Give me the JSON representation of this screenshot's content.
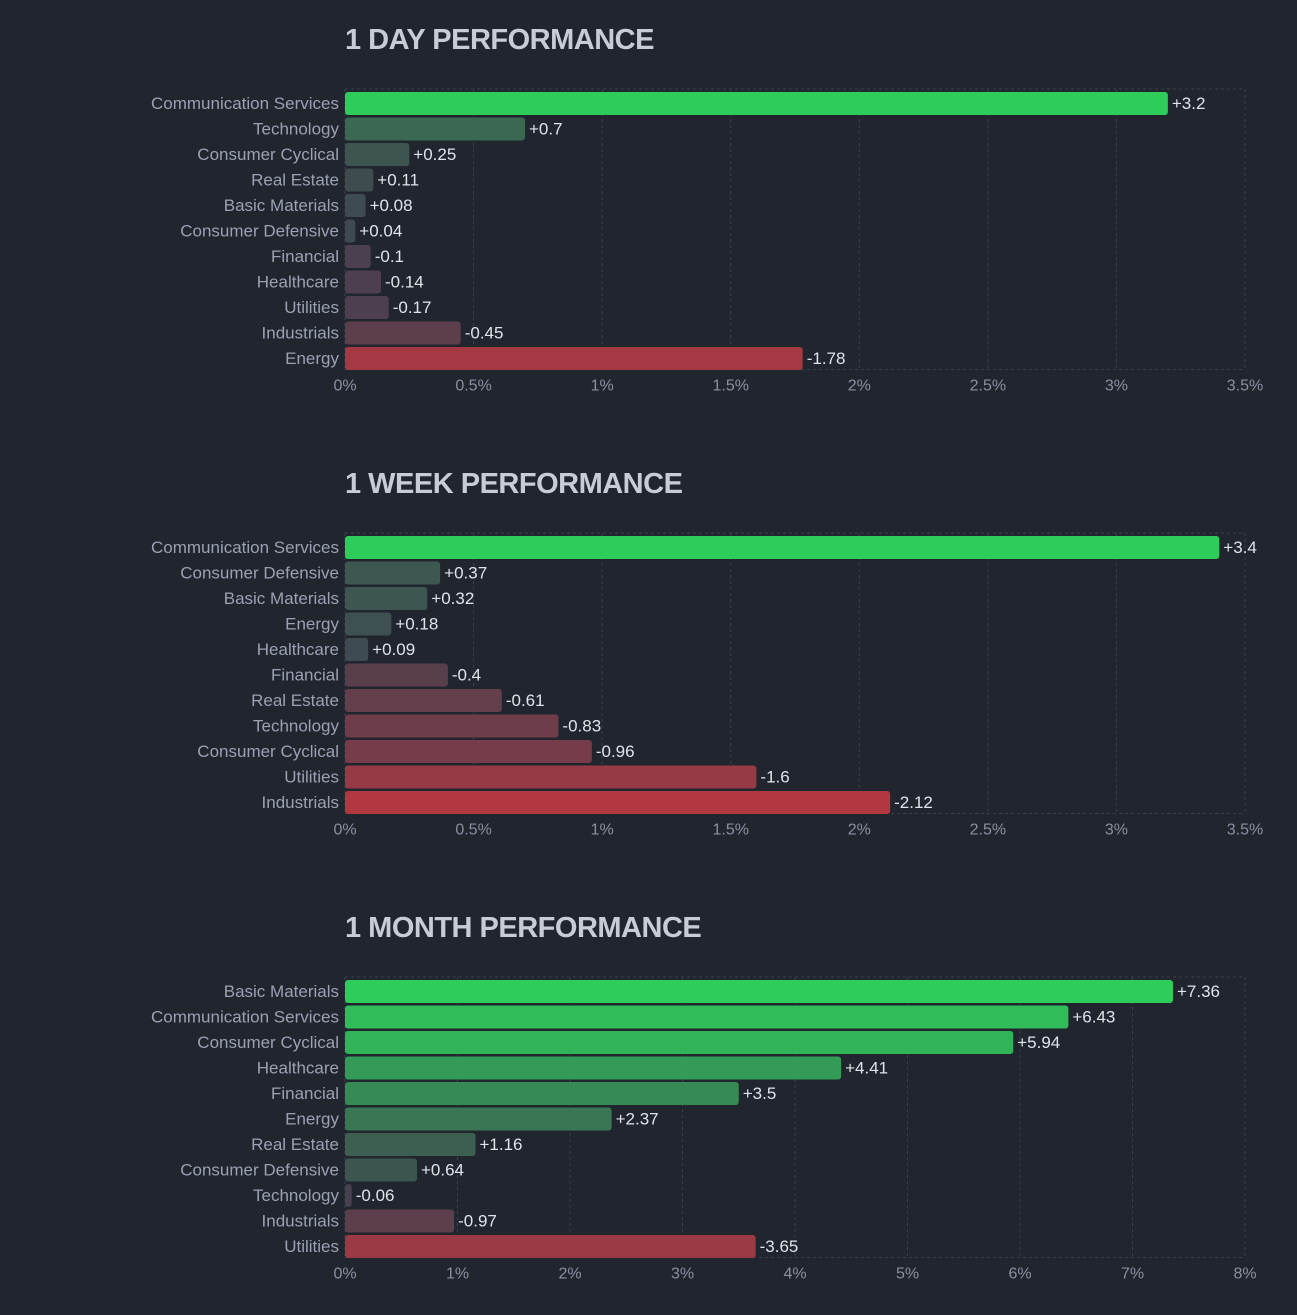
{
  "colors": {
    "background": "#21252e",
    "positive_max": "#2ecc5a",
    "negative_max": "#f23339",
    "neutral": "#3f4650",
    "label": "#9ba1b3",
    "value": "#e0e3ea",
    "title": "#c9ccd6"
  },
  "chart_data": [
    {
      "type": "bar",
      "orientation": "horizontal",
      "title": "1 DAY PERFORMANCE",
      "xlabel": "",
      "ylabel": "",
      "xlim": [
        0,
        3.5
      ],
      "x_ticks": [
        "0%",
        "0.5%",
        "1%",
        "1.5%",
        "2%",
        "2.5%",
        "3%",
        "3.5%"
      ],
      "x_tick_values": [
        0,
        0.5,
        1,
        1.5,
        2,
        2.5,
        3,
        3.5
      ],
      "grid": true,
      "bar_length": "absolute value",
      "categories": [
        "Communication Services",
        "Technology",
        "Consumer Cyclical",
        "Real Estate",
        "Basic Materials",
        "Consumer Defensive",
        "Financial",
        "Healthcare",
        "Utilities",
        "Industrials",
        "Energy"
      ],
      "values": [
        3.2,
        0.7,
        0.25,
        0.11,
        0.08,
        0.04,
        -0.1,
        -0.14,
        -0.17,
        -0.45,
        -1.78
      ],
      "value_labels": [
        "+3.2",
        "+0.7",
        "+0.25",
        "+0.11",
        "+0.08",
        "+0.04",
        "-0.1",
        "-0.14",
        "-0.17",
        "-0.45",
        "-1.78"
      ]
    },
    {
      "type": "bar",
      "orientation": "horizontal",
      "title": "1 WEEK PERFORMANCE",
      "xlabel": "",
      "ylabel": "",
      "xlim": [
        0,
        3.5
      ],
      "x_ticks": [
        "0%",
        "0.5%",
        "1%",
        "1.5%",
        "2%",
        "2.5%",
        "3%",
        "3.5%"
      ],
      "x_tick_values": [
        0,
        0.5,
        1,
        1.5,
        2,
        2.5,
        3,
        3.5
      ],
      "grid": true,
      "bar_length": "absolute value",
      "categories": [
        "Communication Services",
        "Consumer Defensive",
        "Basic Materials",
        "Energy",
        "Healthcare",
        "Financial",
        "Real Estate",
        "Technology",
        "Consumer Cyclical",
        "Utilities",
        "Industrials"
      ],
      "values": [
        3.4,
        0.37,
        0.32,
        0.18,
        0.09,
        -0.4,
        -0.61,
        -0.83,
        -0.96,
        -1.6,
        -2.12
      ],
      "value_labels": [
        "+3.4",
        "+0.37",
        "+0.32",
        "+0.18",
        "+0.09",
        "-0.4",
        "-0.61",
        "-0.83",
        "-0.96",
        "-1.6",
        "-2.12"
      ]
    },
    {
      "type": "bar",
      "orientation": "horizontal",
      "title": "1 MONTH PERFORMANCE",
      "xlabel": "",
      "ylabel": "",
      "xlim": [
        0,
        8
      ],
      "x_ticks": [
        "0%",
        "1%",
        "2%",
        "3%",
        "4%",
        "5%",
        "6%",
        "7%",
        "8%"
      ],
      "x_tick_values": [
        0,
        1,
        2,
        3,
        4,
        5,
        6,
        7,
        8
      ],
      "grid": true,
      "bar_length": "absolute value",
      "categories": [
        "Basic Materials",
        "Communication Services",
        "Consumer Cyclical",
        "Healthcare",
        "Financial",
        "Energy",
        "Real Estate",
        "Consumer Defensive",
        "Technology",
        "Industrials",
        "Utilities"
      ],
      "values": [
        7.36,
        6.43,
        5.94,
        4.41,
        3.5,
        2.37,
        1.16,
        0.64,
        -0.06,
        -0.97,
        -3.65
      ],
      "value_labels": [
        "+7.36",
        "+6.43",
        "+5.94",
        "+4.41",
        "+3.5",
        "+2.37",
        "+1.16",
        "+0.64",
        "-0.06",
        "-0.97",
        "-3.65"
      ]
    }
  ]
}
